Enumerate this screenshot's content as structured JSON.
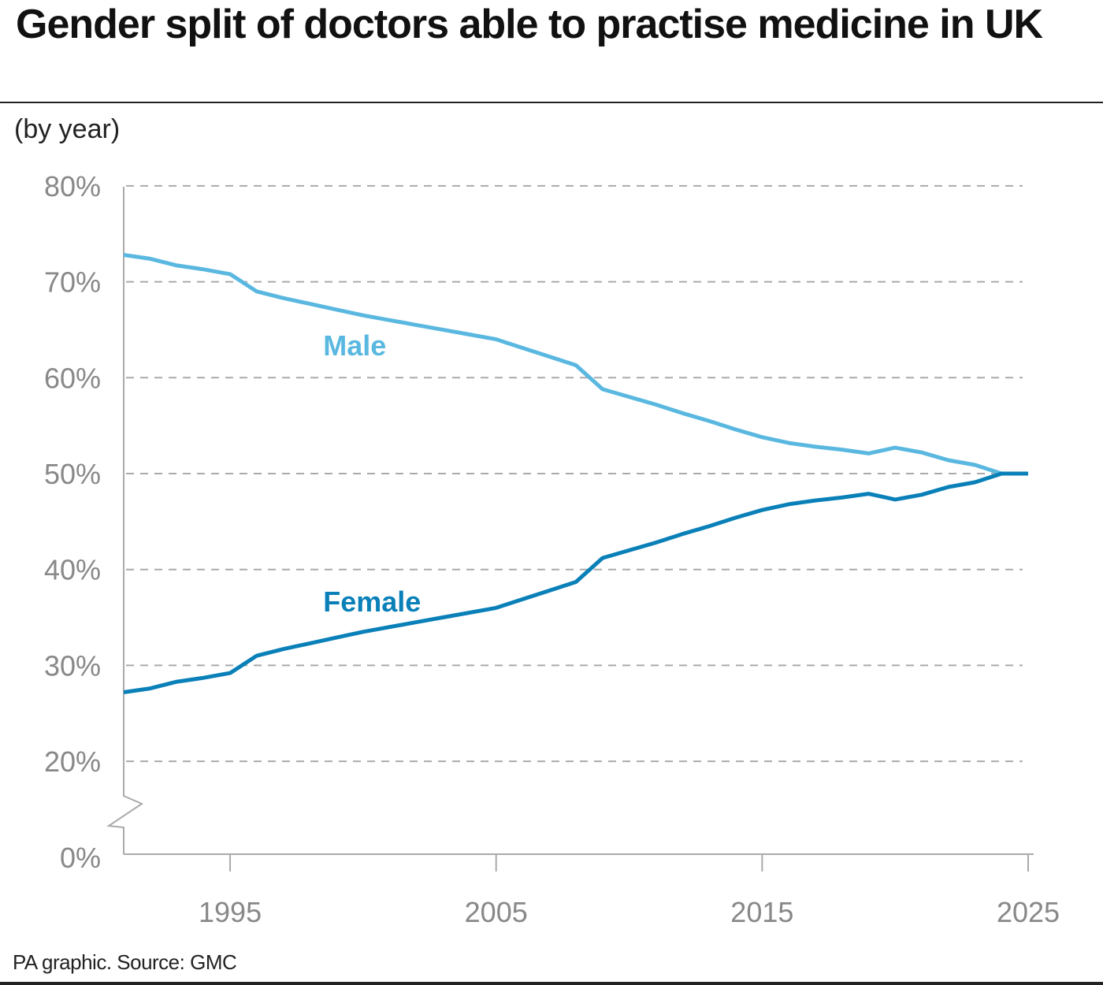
{
  "chart_data": {
    "type": "line",
    "title": "Gender split of doctors able to practise medicine in UK",
    "subtitle": "(by year)",
    "source": "PA graphic. Source: GMC",
    "xlabel": "",
    "ylabel": "",
    "ylim": [
      0,
      80
    ],
    "xlim": [
      1991,
      2025
    ],
    "y_axis_break": [
      0,
      20
    ],
    "grid": true,
    "y_ticks": [
      {
        "value": 80,
        "label": "80%"
      },
      {
        "value": 70,
        "label": "70%"
      },
      {
        "value": 60,
        "label": "60%"
      },
      {
        "value": 50,
        "label": "50%"
      },
      {
        "value": 40,
        "label": "40%"
      },
      {
        "value": 30,
        "label": "30%"
      },
      {
        "value": 20,
        "label": "20%"
      },
      {
        "value": 0,
        "label": "0%"
      }
    ],
    "x_ticks": [
      {
        "value": 1995,
        "label": "1995"
      },
      {
        "value": 2005,
        "label": "2005"
      },
      {
        "value": 2015,
        "label": "2015"
      },
      {
        "value": 2025,
        "label": "2025"
      }
    ],
    "x": [
      1991,
      1992,
      1993,
      1994,
      1995,
      1996,
      1997,
      1998,
      1999,
      2000,
      2001,
      2002,
      2003,
      2004,
      2005,
      2006,
      2007,
      2008,
      2009,
      2010,
      2011,
      2012,
      2013,
      2014,
      2015,
      2016,
      2017,
      2018,
      2019,
      2020,
      2021,
      2022,
      2023,
      2024,
      2025
    ],
    "series": [
      {
        "name": "Male",
        "color": "#5ab8e0",
        "label_at": [
          1998.5,
          63.3
        ],
        "values": [
          72.8,
          72.4,
          71.7,
          71.3,
          70.8,
          69.0,
          68.3,
          67.7,
          67.1,
          66.5,
          66.0,
          65.5,
          65.0,
          64.5,
          64.0,
          63.1,
          62.2,
          61.3,
          58.8,
          58.0,
          57.2,
          56.3,
          55.5,
          54.6,
          53.8,
          53.2,
          52.8,
          52.5,
          52.1,
          52.7,
          52.2,
          51.4,
          50.9,
          50.0,
          50.0
        ]
      },
      {
        "name": "Female",
        "color": "#0a80b8",
        "label_at": [
          1998.5,
          36.6
        ],
        "values": [
          27.2,
          27.6,
          28.3,
          28.7,
          29.2,
          31.0,
          31.7,
          32.3,
          32.9,
          33.5,
          34.0,
          34.5,
          35.0,
          35.5,
          36.0,
          36.9,
          37.8,
          38.7,
          41.2,
          42.0,
          42.8,
          43.7,
          44.5,
          45.4,
          46.2,
          46.8,
          47.2,
          47.5,
          47.9,
          47.3,
          47.8,
          48.6,
          49.1,
          50.0,
          50.0
        ]
      }
    ]
  }
}
